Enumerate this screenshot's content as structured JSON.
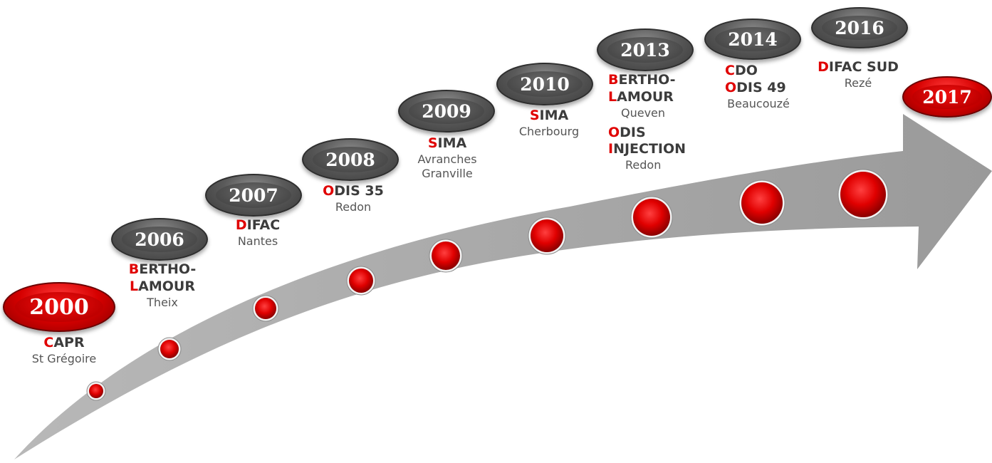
{
  "colors": {
    "accent": "#e00000",
    "arrow": "#a6a6a6",
    "badge_grey": "#4a4a4a",
    "text": "#3c3c3c"
  },
  "milestones": [
    {
      "year": "2000",
      "highlight": true,
      "entries": [
        {
          "initial": "C",
          "rest": "APR",
          "city": "St Grégoire"
        }
      ]
    },
    {
      "year": "2006",
      "highlight": false,
      "entries": [
        {
          "initial": "B",
          "rest": "ERTHO-",
          "initial2": "L",
          "rest2": "AMOUR",
          "city": "Theix"
        }
      ]
    },
    {
      "year": "2007",
      "highlight": false,
      "entries": [
        {
          "initial": "D",
          "rest": "IFAC",
          "city": "Nantes"
        }
      ]
    },
    {
      "year": "2008",
      "highlight": false,
      "entries": [
        {
          "initial": "O",
          "rest": "DIS 35",
          "city": "Redon"
        }
      ]
    },
    {
      "year": "2009",
      "highlight": false,
      "entries": [
        {
          "initial": "S",
          "rest": "IMA",
          "city": "Avranches",
          "city2": "Granville"
        }
      ]
    },
    {
      "year": "2010",
      "highlight": false,
      "entries": [
        {
          "initial": "S",
          "rest": "IMA",
          "city": "Cherbourg"
        }
      ]
    },
    {
      "year": "2013",
      "highlight": false,
      "entries": [
        {
          "initial": "B",
          "rest": "ERTHO-",
          "initial2": "L",
          "rest2": "AMOUR",
          "city": "Queven"
        },
        {
          "initial": "O",
          "rest": "DIS",
          "initial2": "I",
          "rest2": "NJECTION",
          "city": "Redon"
        }
      ]
    },
    {
      "year": "2014",
      "highlight": false,
      "entries": [
        {
          "initial": "C",
          "rest": "DO",
          "initial2": "O",
          "rest2": "DIS 49",
          "city": "Beaucouzé"
        }
      ]
    },
    {
      "year": "2016",
      "highlight": false,
      "entries": [
        {
          "initial": "D",
          "rest": "IFAC SUD",
          "city": "Rezé"
        }
      ]
    },
    {
      "year": "2017",
      "highlight": true,
      "entries": []
    }
  ]
}
